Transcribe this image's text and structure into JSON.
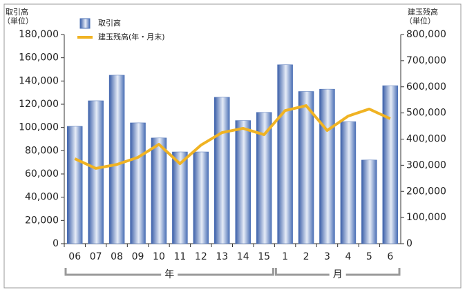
{
  "chart_data": {
    "type": "bar_line",
    "ylabel": [
      "取引高",
      "（単位）"
    ],
    "y2label": [
      "建玉残高",
      "（単位）"
    ],
    "categories": [
      "06",
      "07",
      "08",
      "09",
      "10",
      "11",
      "12",
      "13",
      "14",
      "15",
      "1",
      "2",
      "3",
      "4",
      "5",
      "6"
    ],
    "groups": [
      {
        "label": "年",
        "count": 10
      },
      {
        "label": "月",
        "count": 6
      }
    ],
    "series": [
      {
        "name": "取引高",
        "color": "#4a6fb5",
        "type": "bar",
        "values": [
          101000,
          123000,
          145000,
          104000,
          91000,
          79000,
          79000,
          126000,
          106000,
          113000,
          154000,
          131000,
          133000,
          105000,
          72000,
          136000
        ]
      },
      {
        "name": "建玉残高(年・月末)",
        "color": "#f0b323",
        "type": "line",
        "axis": "y2",
        "values": [
          325000,
          288000,
          303000,
          330000,
          380000,
          306000,
          377000,
          425000,
          441000,
          417000,
          509000,
          528000,
          433000,
          488000,
          515000,
          478000
        ]
      }
    ],
    "ylim": [
      0,
      180000
    ],
    "yticks": [
      0,
      {
        "value": 20000,
        "label": "20,000"
      },
      {
        "value": 40000,
        "label": "40,000"
      },
      {
        "value": 60000,
        "label": "60,000"
      },
      {
        "value": 80000,
        "label": "80,000"
      },
      {
        "value": 100000,
        "label": "100,000"
      },
      {
        "value": 120000,
        "label": "120,000"
      },
      {
        "value": 140000,
        "label": "140,000"
      },
      {
        "value": 160000,
        "label": "160,000"
      },
      {
        "value": 180000,
        "label": "180,000"
      }
    ],
    "y2lim": [
      0,
      800000
    ],
    "y2ticks": [
      0,
      {
        "value": 100000,
        "label": "100,000"
      },
      {
        "value": 200000,
        "label": "200,000"
      },
      {
        "value": 300000,
        "label": "300,000"
      },
      {
        "value": 400000,
        "label": "400,000"
      },
      {
        "value": 500000,
        "label": "500,000"
      },
      {
        "value": 600000,
        "label": "600,000"
      },
      {
        "value": 700000,
        "label": "700,000"
      },
      {
        "value": 800000,
        "label": "800,000"
      }
    ]
  }
}
